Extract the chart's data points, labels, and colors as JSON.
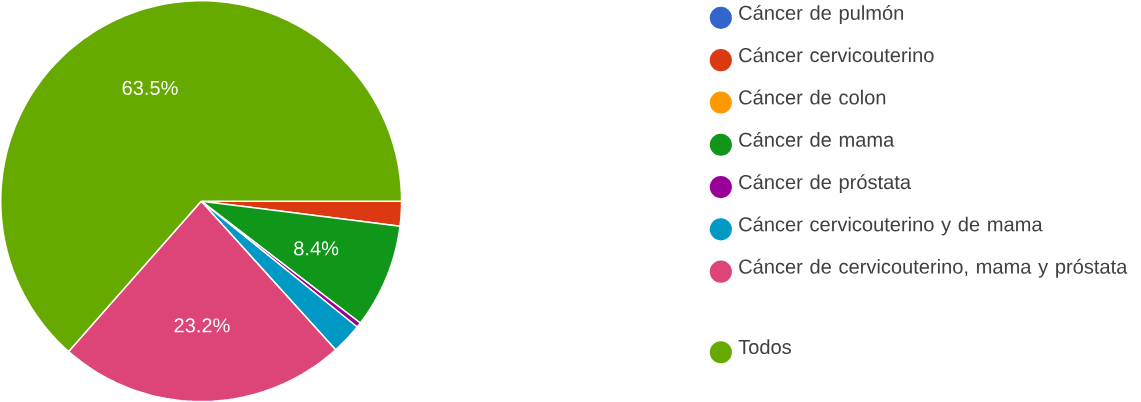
{
  "chart_data": {
    "type": "pie",
    "categories": [
      "Cáncer de pulmón",
      "Cáncer cervicouterino",
      "Cáncer de colon",
      "Cáncer de mama",
      "Cáncer de próstata",
      "Cáncer cervicouterino y de mama",
      "Cáncer de cervicouterino, mama y próstata",
      "Todos"
    ],
    "values": [
      0,
      2.0,
      0,
      8.4,
      0.4,
      2.5,
      23.2,
      63.5
    ],
    "colors": [
      "#3366cc",
      "#dc3912",
      "#ff9900",
      "#109618",
      "#990099",
      "#0099c6",
      "#dd4477",
      "#66aa00"
    ],
    "value_labels": [
      null,
      null,
      null,
      "8.4%",
      null,
      null,
      "23.2%",
      "63.5%"
    ],
    "legend": "right"
  }
}
